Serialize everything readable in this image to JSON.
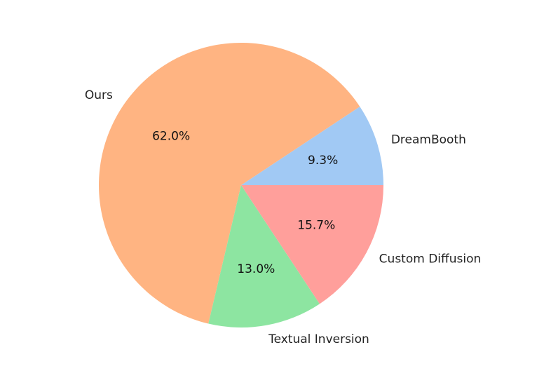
{
  "chart_data": {
    "type": "pie",
    "title": "",
    "start_angle_deg": 0,
    "direction": "counterclockwise",
    "slices": [
      {
        "label": "DreamBooth",
        "value": 9.3,
        "pct_label": "9.3%",
        "color": "#a1c9f4"
      },
      {
        "label": "Ours",
        "value": 62.0,
        "pct_label": "62.0%",
        "color": "#ffb482"
      },
      {
        "label": "Textual Inversion",
        "value": 13.0,
        "pct_label": "13.0%",
        "color": "#8de5a1"
      },
      {
        "label": "Custom Diffusion",
        "value": 15.7,
        "pct_label": "15.7%",
        "color": "#ff9f9b"
      }
    ]
  }
}
